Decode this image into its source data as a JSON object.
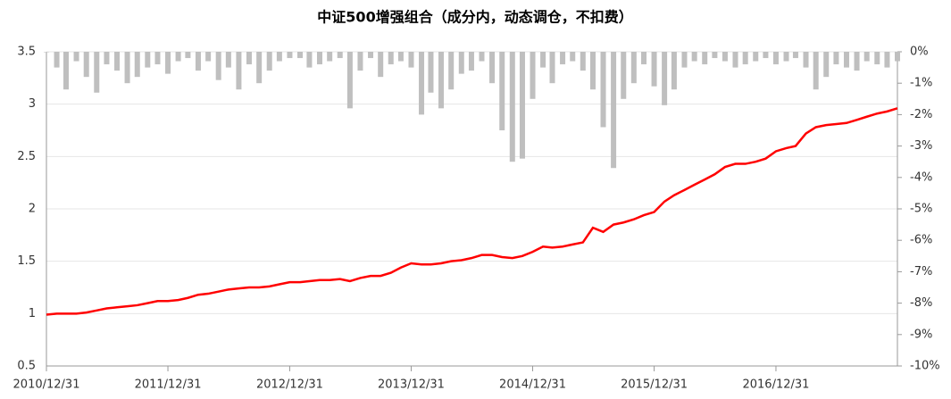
{
  "chart_data": {
    "type": "line",
    "title": "中证500增强组合（成分内，动态调仓，不扣费）",
    "x": [
      "2010/12/31",
      "2011/01/31",
      "2011/02/28",
      "2011/03/31",
      "2011/04/30",
      "2011/05/31",
      "2011/06/30",
      "2011/07/31",
      "2011/08/31",
      "2011/09/30",
      "2011/10/31",
      "2011/11/30",
      "2011/12/31",
      "2012/01/31",
      "2012/02/29",
      "2012/03/31",
      "2012/04/30",
      "2012/05/31",
      "2012/06/30",
      "2012/07/31",
      "2012/08/31",
      "2012/09/30",
      "2012/10/31",
      "2012/11/30",
      "2012/12/31",
      "2013/01/31",
      "2013/02/28",
      "2013/03/31",
      "2013/04/30",
      "2013/05/31",
      "2013/06/30",
      "2013/07/31",
      "2013/08/31",
      "2013/09/30",
      "2013/10/31",
      "2013/11/30",
      "2013/12/31",
      "2014/01/31",
      "2014/02/28",
      "2014/03/31",
      "2014/04/30",
      "2014/05/31",
      "2014/06/30",
      "2014/07/31",
      "2014/08/31",
      "2014/09/30",
      "2014/10/31",
      "2014/11/30",
      "2014/12/31",
      "2015/01/31",
      "2015/02/28",
      "2015/03/31",
      "2015/04/30",
      "2015/05/31",
      "2015/06/30",
      "2015/07/31",
      "2015/08/31",
      "2015/09/30",
      "2015/10/31",
      "2015/11/30",
      "2015/12/31",
      "2016/01/31",
      "2016/02/29",
      "2016/03/31",
      "2016/04/30",
      "2016/05/31",
      "2016/06/30",
      "2016/07/31",
      "2016/08/31",
      "2016/09/30",
      "2016/10/31",
      "2016/11/30",
      "2016/12/31",
      "2017/01/31",
      "2017/02/28",
      "2017/03/31",
      "2017/04/30",
      "2017/05/31",
      "2017/06/30",
      "2017/07/31",
      "2017/08/31",
      "2017/09/30",
      "2017/10/31",
      "2017/11/30",
      "2017/12/31"
    ],
    "series": [
      {
        "color": "#ff0000",
        "values": [
          0.99,
          1.0,
          1.0,
          1.0,
          1.01,
          1.03,
          1.05,
          1.06,
          1.07,
          1.08,
          1.1,
          1.12,
          1.12,
          1.13,
          1.15,
          1.18,
          1.19,
          1.21,
          1.23,
          1.24,
          1.25,
          1.25,
          1.26,
          1.28,
          1.3,
          1.3,
          1.31,
          1.32,
          1.32,
          1.33,
          1.31,
          1.34,
          1.36,
          1.36,
          1.39,
          1.44,
          1.48,
          1.47,
          1.47,
          1.48,
          1.5,
          1.51,
          1.53,
          1.56,
          1.56,
          1.54,
          1.53,
          1.55,
          1.59,
          1.64,
          1.63,
          1.64,
          1.66,
          1.68,
          1.82,
          1.78,
          1.85,
          1.87,
          1.9,
          1.94,
          1.97,
          2.07,
          2.13,
          2.18,
          2.23,
          2.28,
          2.33,
          2.4,
          2.43,
          2.43,
          2.45,
          2.48,
          2.55,
          2.58,
          2.6,
          2.72,
          2.78,
          2.8,
          2.81,
          2.82,
          2.85,
          2.88,
          2.91,
          2.93,
          2.96
        ]
      },
      {
        "color": "#bfbfbf",
        "type": "bar",
        "axis": "y2",
        "values": [
          0,
          -0.5,
          -1.2,
          -0.3,
          -0.8,
          -1.3,
          -0.4,
          -0.6,
          -1.0,
          -0.8,
          -0.5,
          -0.4,
          -0.7,
          -0.3,
          -0.2,
          -0.6,
          -0.3,
          -0.9,
          -0.5,
          -1.2,
          -0.4,
          -1.0,
          -0.6,
          -0.3,
          -0.2,
          -0.2,
          -0.5,
          -0.4,
          -0.3,
          -0.2,
          -1.8,
          -0.6,
          -0.2,
          -0.8,
          -0.4,
          -0.3,
          -0.5,
          -2.0,
          -1.3,
          -1.8,
          -1.2,
          -0.7,
          -0.6,
          -0.3,
          -1.0,
          -2.5,
          -3.5,
          -3.4,
          -1.5,
          -0.5,
          -1.0,
          -0.4,
          -0.3,
          -0.6,
          -1.2,
          -2.4,
          -3.7,
          -1.5,
          -1.0,
          -0.4,
          -1.1,
          -1.7,
          -1.2,
          -0.5,
          -0.3,
          -0.4,
          -0.2,
          -0.3,
          -0.5,
          -0.4,
          -0.3,
          -0.2,
          -0.4,
          -0.3,
          -0.2,
          -0.5,
          -1.2,
          -0.8,
          -0.4,
          -0.5,
          -0.6,
          -0.3,
          -0.4,
          -0.5,
          -0.3
        ]
      }
    ],
    "xlim": [
      "2010/12/31",
      "2017/12/31"
    ],
    "xticks": [
      "2010/12/31",
      "2011/12/31",
      "2012/12/31",
      "2013/12/31",
      "2014/12/31",
      "2015/12/31",
      "2016/12/31"
    ],
    "ylim": [
      0.5,
      3.5
    ],
    "yticks": [
      0.5,
      1,
      1.5,
      2,
      2.5,
      3,
      3.5
    ],
    "y2lim": [
      -10,
      0
    ],
    "y2ticks": [
      {
        "value": 0,
        "label": "0%"
      },
      {
        "value": -1,
        "label": "-1%"
      },
      {
        "value": -2,
        "label": "-2%"
      },
      {
        "value": -3,
        "label": "-3%"
      },
      {
        "value": -4,
        "label": "-4%"
      },
      {
        "value": -5,
        "label": "-5%"
      },
      {
        "value": -6,
        "label": "-6%"
      },
      {
        "value": -7,
        "label": "-7%"
      },
      {
        "value": -8,
        "label": "-8%"
      },
      {
        "value": -9,
        "label": "-9%"
      },
      {
        "value": -10,
        "label": "-10%"
      }
    ],
    "grid": true
  }
}
